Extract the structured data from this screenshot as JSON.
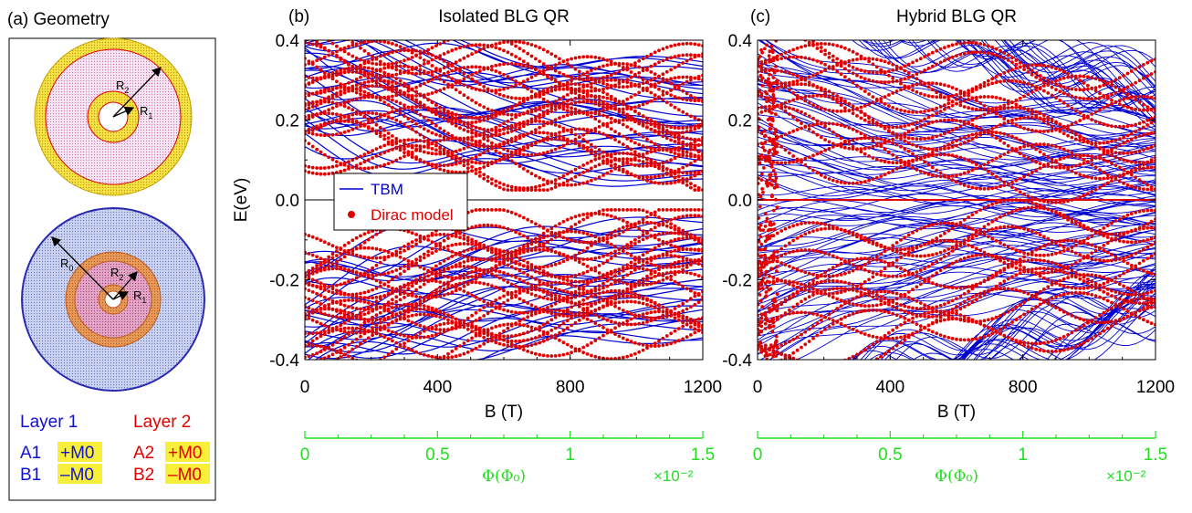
{
  "geometry": {
    "panel_label": "(a) Geometry",
    "r_labels": {
      "r2_top": "R",
      "r2_top_sub": "2",
      "r1_top": "R",
      "r1_top_sub": "1",
      "r0": "R",
      "r0_sub": "0",
      "r2_bot": "R",
      "r2_bot_sub": "2",
      "r1_bot": "R",
      "r1_bot_sub": "1"
    },
    "layer1": {
      "title": "Layer 1",
      "a": "A1",
      "b": "B1",
      "a_mass": "+M0",
      "b_mass": "–M0"
    },
    "layer2": {
      "title": "Layer 2",
      "a": "A2",
      "b": "B2",
      "a_mass": "+M0",
      "b_mass": "–M0"
    }
  },
  "colors": {
    "tbm": "#0000d0",
    "dirac": "#e00000",
    "flux_axis": "#22dd22",
    "highlight": "#f7ef3a"
  },
  "chart_data": [
    {
      "type": "line",
      "panel_label": "(b)",
      "title": "Isolated BLG QR",
      "xlabel": "B (T)",
      "ylabel": "E(eV)",
      "xlim": [
        0,
        1200
      ],
      "ylim": [
        -0.4,
        0.4
      ],
      "xticks": [
        "0",
        "400",
        "800",
        "1200"
      ],
      "yticks": [
        "0.4",
        "0.2",
        "0.0",
        "-0.2",
        "-0.4"
      ],
      "legend": {
        "position": "center-left",
        "tbm": "TBM",
        "dirac": "Dirac model"
      },
      "series": [
        {
          "name": "TBM",
          "style": "line",
          "color": "#0000d0"
        },
        {
          "name": "Dirac model",
          "style": "dots",
          "color": "#e00000"
        }
      ],
      "secondary_axis": {
        "label": "Φ(Φ₀)",
        "ticks": [
          "0",
          "0.5",
          "1",
          "1.5"
        ],
        "range": [
          0,
          1.5
        ],
        "multiplier": "×10⁻²"
      }
    },
    {
      "type": "line",
      "panel_label": "(c)",
      "title": "Hybrid BLG QR",
      "xlabel": "B (T)",
      "ylabel": "",
      "xlim": [
        0,
        1200
      ],
      "ylim": [
        -0.4,
        0.4
      ],
      "xticks": [
        "0",
        "400",
        "800",
        "1200"
      ],
      "yticks": [
        "0.4",
        "0.2",
        "0.0",
        "-0.2",
        "-0.4"
      ],
      "series": [
        {
          "name": "TBM",
          "style": "line",
          "color": "#0000d0"
        },
        {
          "name": "Dirac model",
          "style": "dots",
          "color": "#e00000"
        }
      ],
      "secondary_axis": {
        "label": "Φ(Φ₀)",
        "ticks": [
          "0",
          "0.5",
          "1",
          "1.5"
        ],
        "range": [
          0,
          1.5
        ],
        "multiplier": "×10⁻²"
      }
    }
  ]
}
